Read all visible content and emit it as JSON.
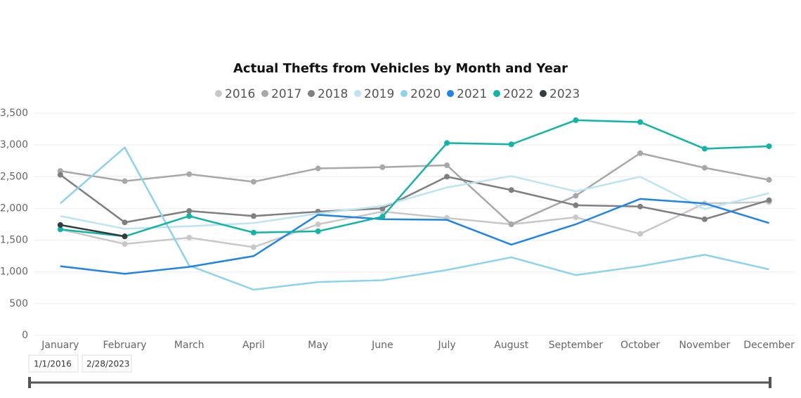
{
  "chart_data": {
    "type": "line",
    "title": "Actual Thefts from Vehicles by Month and Year",
    "categories": [
      "January",
      "February",
      "March",
      "April",
      "May",
      "June",
      "July",
      "August",
      "September",
      "October",
      "November",
      "December"
    ],
    "ylim": [
      0,
      3500
    ],
    "yticks": [
      0,
      500,
      {
        "value": 1000,
        "label": "1,000"
      },
      {
        "value": 1500,
        "label": "1,500"
      },
      {
        "value": 2000,
        "label": "2,000"
      },
      {
        "value": 2500,
        "label": "2,500"
      },
      {
        "value": 3000,
        "label": "3,000"
      },
      {
        "value": 3500,
        "label": "3,500"
      }
    ],
    "grid": true,
    "legend": "top",
    "series": [
      {
        "name": "2016",
        "color": "#c8c8c8",
        "markers": true,
        "values": [
          1670,
          1440,
          1540,
          1390,
          1750,
          1950,
          1850,
          1750,
          1860,
          1600,
          2080,
          2100
        ]
      },
      {
        "name": "2017",
        "color": "#a8a8a8",
        "markers": true,
        "values": [
          2590,
          2430,
          2540,
          2420,
          2630,
          2650,
          2680,
          1750,
          2200,
          2870,
          2640,
          2450
        ]
      },
      {
        "name": "2018",
        "color": "#7f7f7f",
        "markers": true,
        "values": [
          2530,
          1780,
          1960,
          1880,
          1950,
          2000,
          2500,
          2290,
          2050,
          2030,
          1830,
          2130
        ]
      },
      {
        "name": "2019",
        "color": "#bde4f2",
        "markers": false,
        "values": [
          1880,
          1680,
          1720,
          1770,
          1920,
          2040,
          2330,
          2510,
          2270,
          2500,
          1990,
          2240
        ]
      },
      {
        "name": "2020",
        "color": "#8dd3ea",
        "markers": false,
        "values": [
          2080,
          2960,
          1100,
          720,
          840,
          870,
          1030,
          1230,
          950,
          1090,
          1270,
          1040
        ]
      },
      {
        "name": "2021",
        "color": "#1f84e8",
        "markers": false,
        "values": [
          1090,
          970,
          1080,
          1250,
          1900,
          1830,
          1820,
          1430,
          1750,
          2150,
          2080,
          1770
        ]
      },
      {
        "name": "2022",
        "color": "#12b5a4",
        "markers": true,
        "values": [
          1670,
          1560,
          1880,
          1620,
          1640,
          1870,
          3030,
          3010,
          3390,
          3360,
          2940,
          2980
        ]
      },
      {
        "name": "2023",
        "color": "#333d3f",
        "markers": true,
        "values": [
          1740,
          1560,
          null,
          null,
          null,
          null,
          null,
          null,
          null,
          null,
          null,
          null
        ]
      }
    ]
  },
  "slicer": {
    "start": "1/1/2016",
    "end": "2/28/2023"
  }
}
